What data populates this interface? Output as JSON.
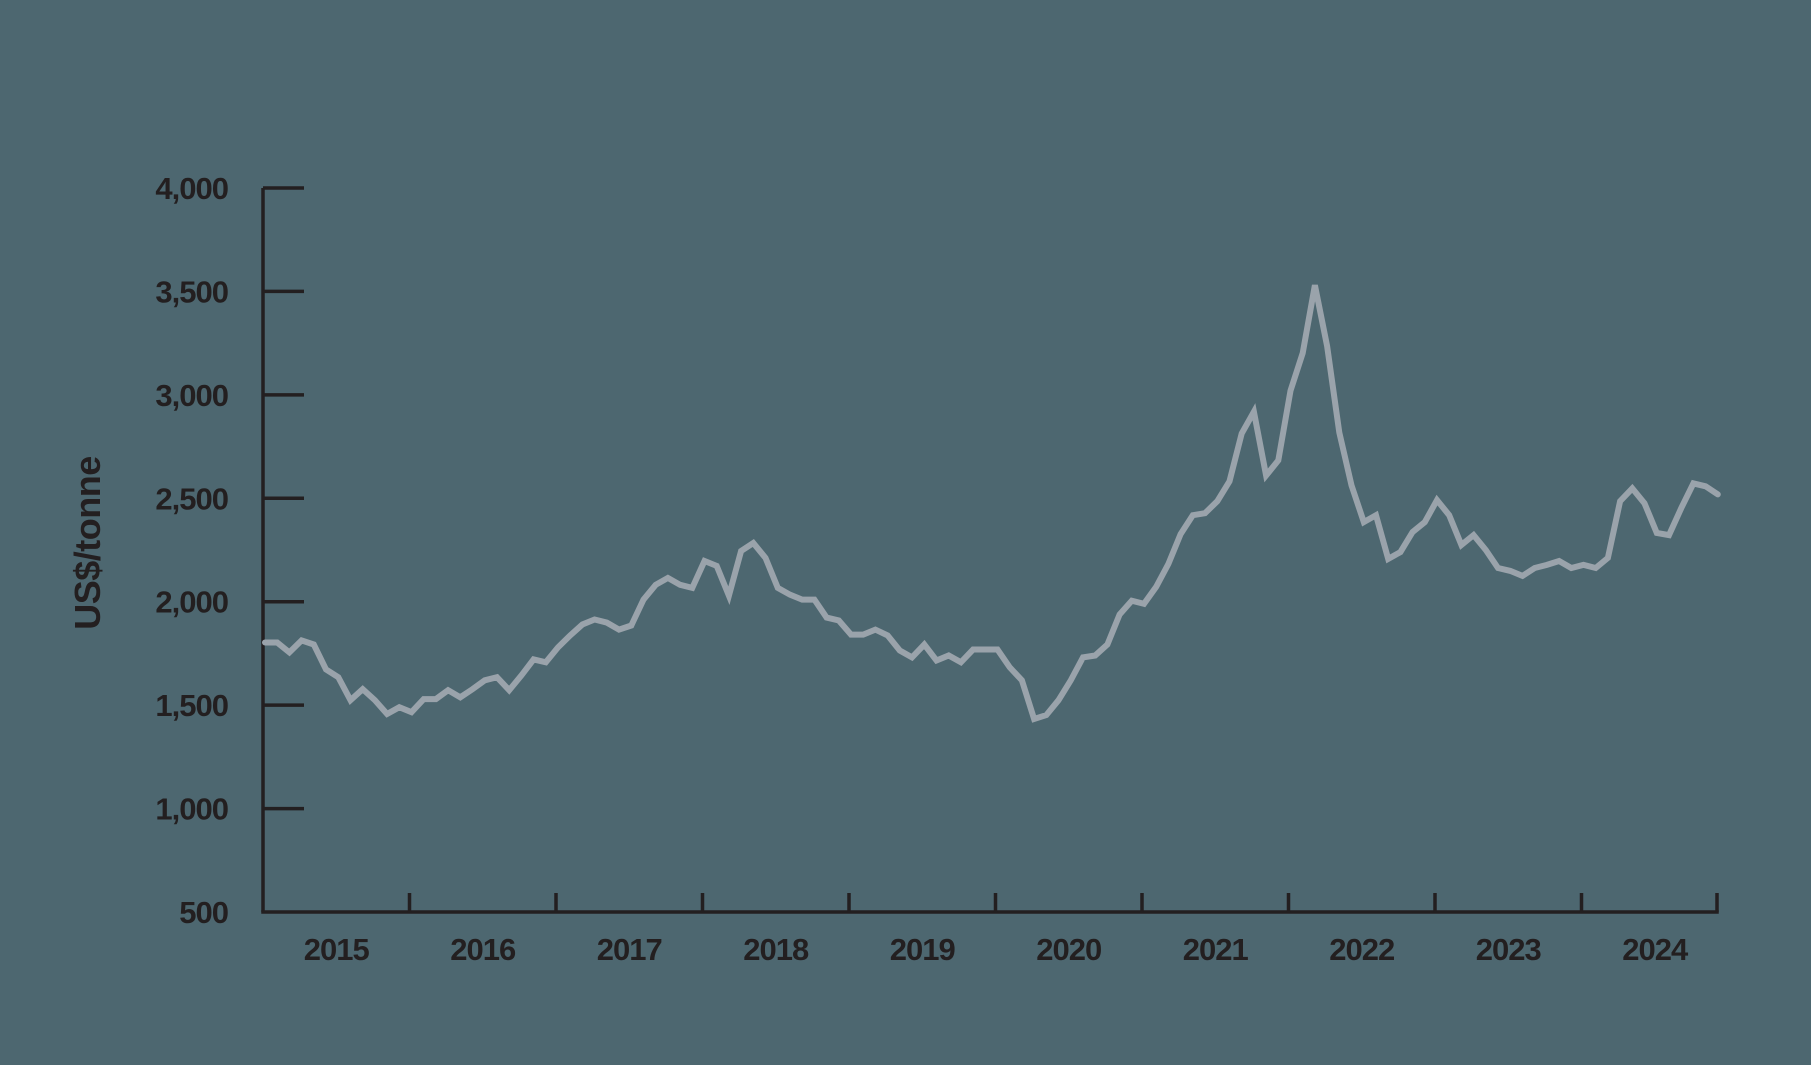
{
  "colors": {
    "background": "#4D6770",
    "line": "#9AA3AB",
    "axis": "#231F20",
    "text": "#231F20"
  },
  "chart_data": {
    "type": "line",
    "title": "",
    "xlabel": "",
    "ylabel": "US$/tonne",
    "ylim": [
      500,
      4000
    ],
    "yticks": [
      500,
      1000,
      1500,
      2000,
      2500,
      3000,
      3500,
      4000
    ],
    "ytick_labels": [
      "500",
      "1,000",
      "1,500",
      "2,000",
      "2,500",
      "3,000",
      "3,500",
      "4,000"
    ],
    "xtick_labels": [
      "2015",
      "2016",
      "2017",
      "2018",
      "2019",
      "2020",
      "2021",
      "2022",
      "2023",
      "2024"
    ],
    "grid": false,
    "legend": null,
    "frequency": "monthly",
    "start": "2015-01",
    "series": [
      {
        "name": "US$/tonne",
        "values": [
          1803,
          1803,
          1755,
          1813,
          1793,
          1673,
          1635,
          1524,
          1577,
          1524,
          1457,
          1490,
          1466,
          1529,
          1529,
          1572,
          1538,
          1577,
          1620,
          1635,
          1572,
          1644,
          1721,
          1707,
          1779,
          1837,
          1890,
          1914,
          1899,
          1865,
          1885,
          2010,
          2082,
          2115,
          2082,
          2067,
          2197,
          2173,
          2029,
          2245,
          2284,
          2212,
          2067,
          2034,
          2010,
          2010,
          1923,
          1909,
          1841,
          1841,
          1865,
          1837,
          1764,
          1731,
          1793,
          1716,
          1740,
          1707,
          1769,
          1769,
          1769,
          1683,
          1620,
          1433,
          1452,
          1524,
          1620,
          1731,
          1740,
          1793,
          1938,
          2005,
          1990,
          2072,
          2183,
          2327,
          2418,
          2428,
          2486,
          2582,
          2813,
          2918,
          2610,
          2683,
          3020,
          3202,
          3530,
          3236,
          2818,
          2563,
          2385,
          2418,
          2207,
          2240,
          2337,
          2385,
          2491,
          2418,
          2274,
          2322,
          2250,
          2163,
          2149,
          2125,
          2163,
          2178,
          2197,
          2163,
          2178,
          2163,
          2212,
          2486,
          2548,
          2476,
          2332,
          2322,
          2452,
          2572,
          2558,
          2519
        ]
      }
    ]
  }
}
